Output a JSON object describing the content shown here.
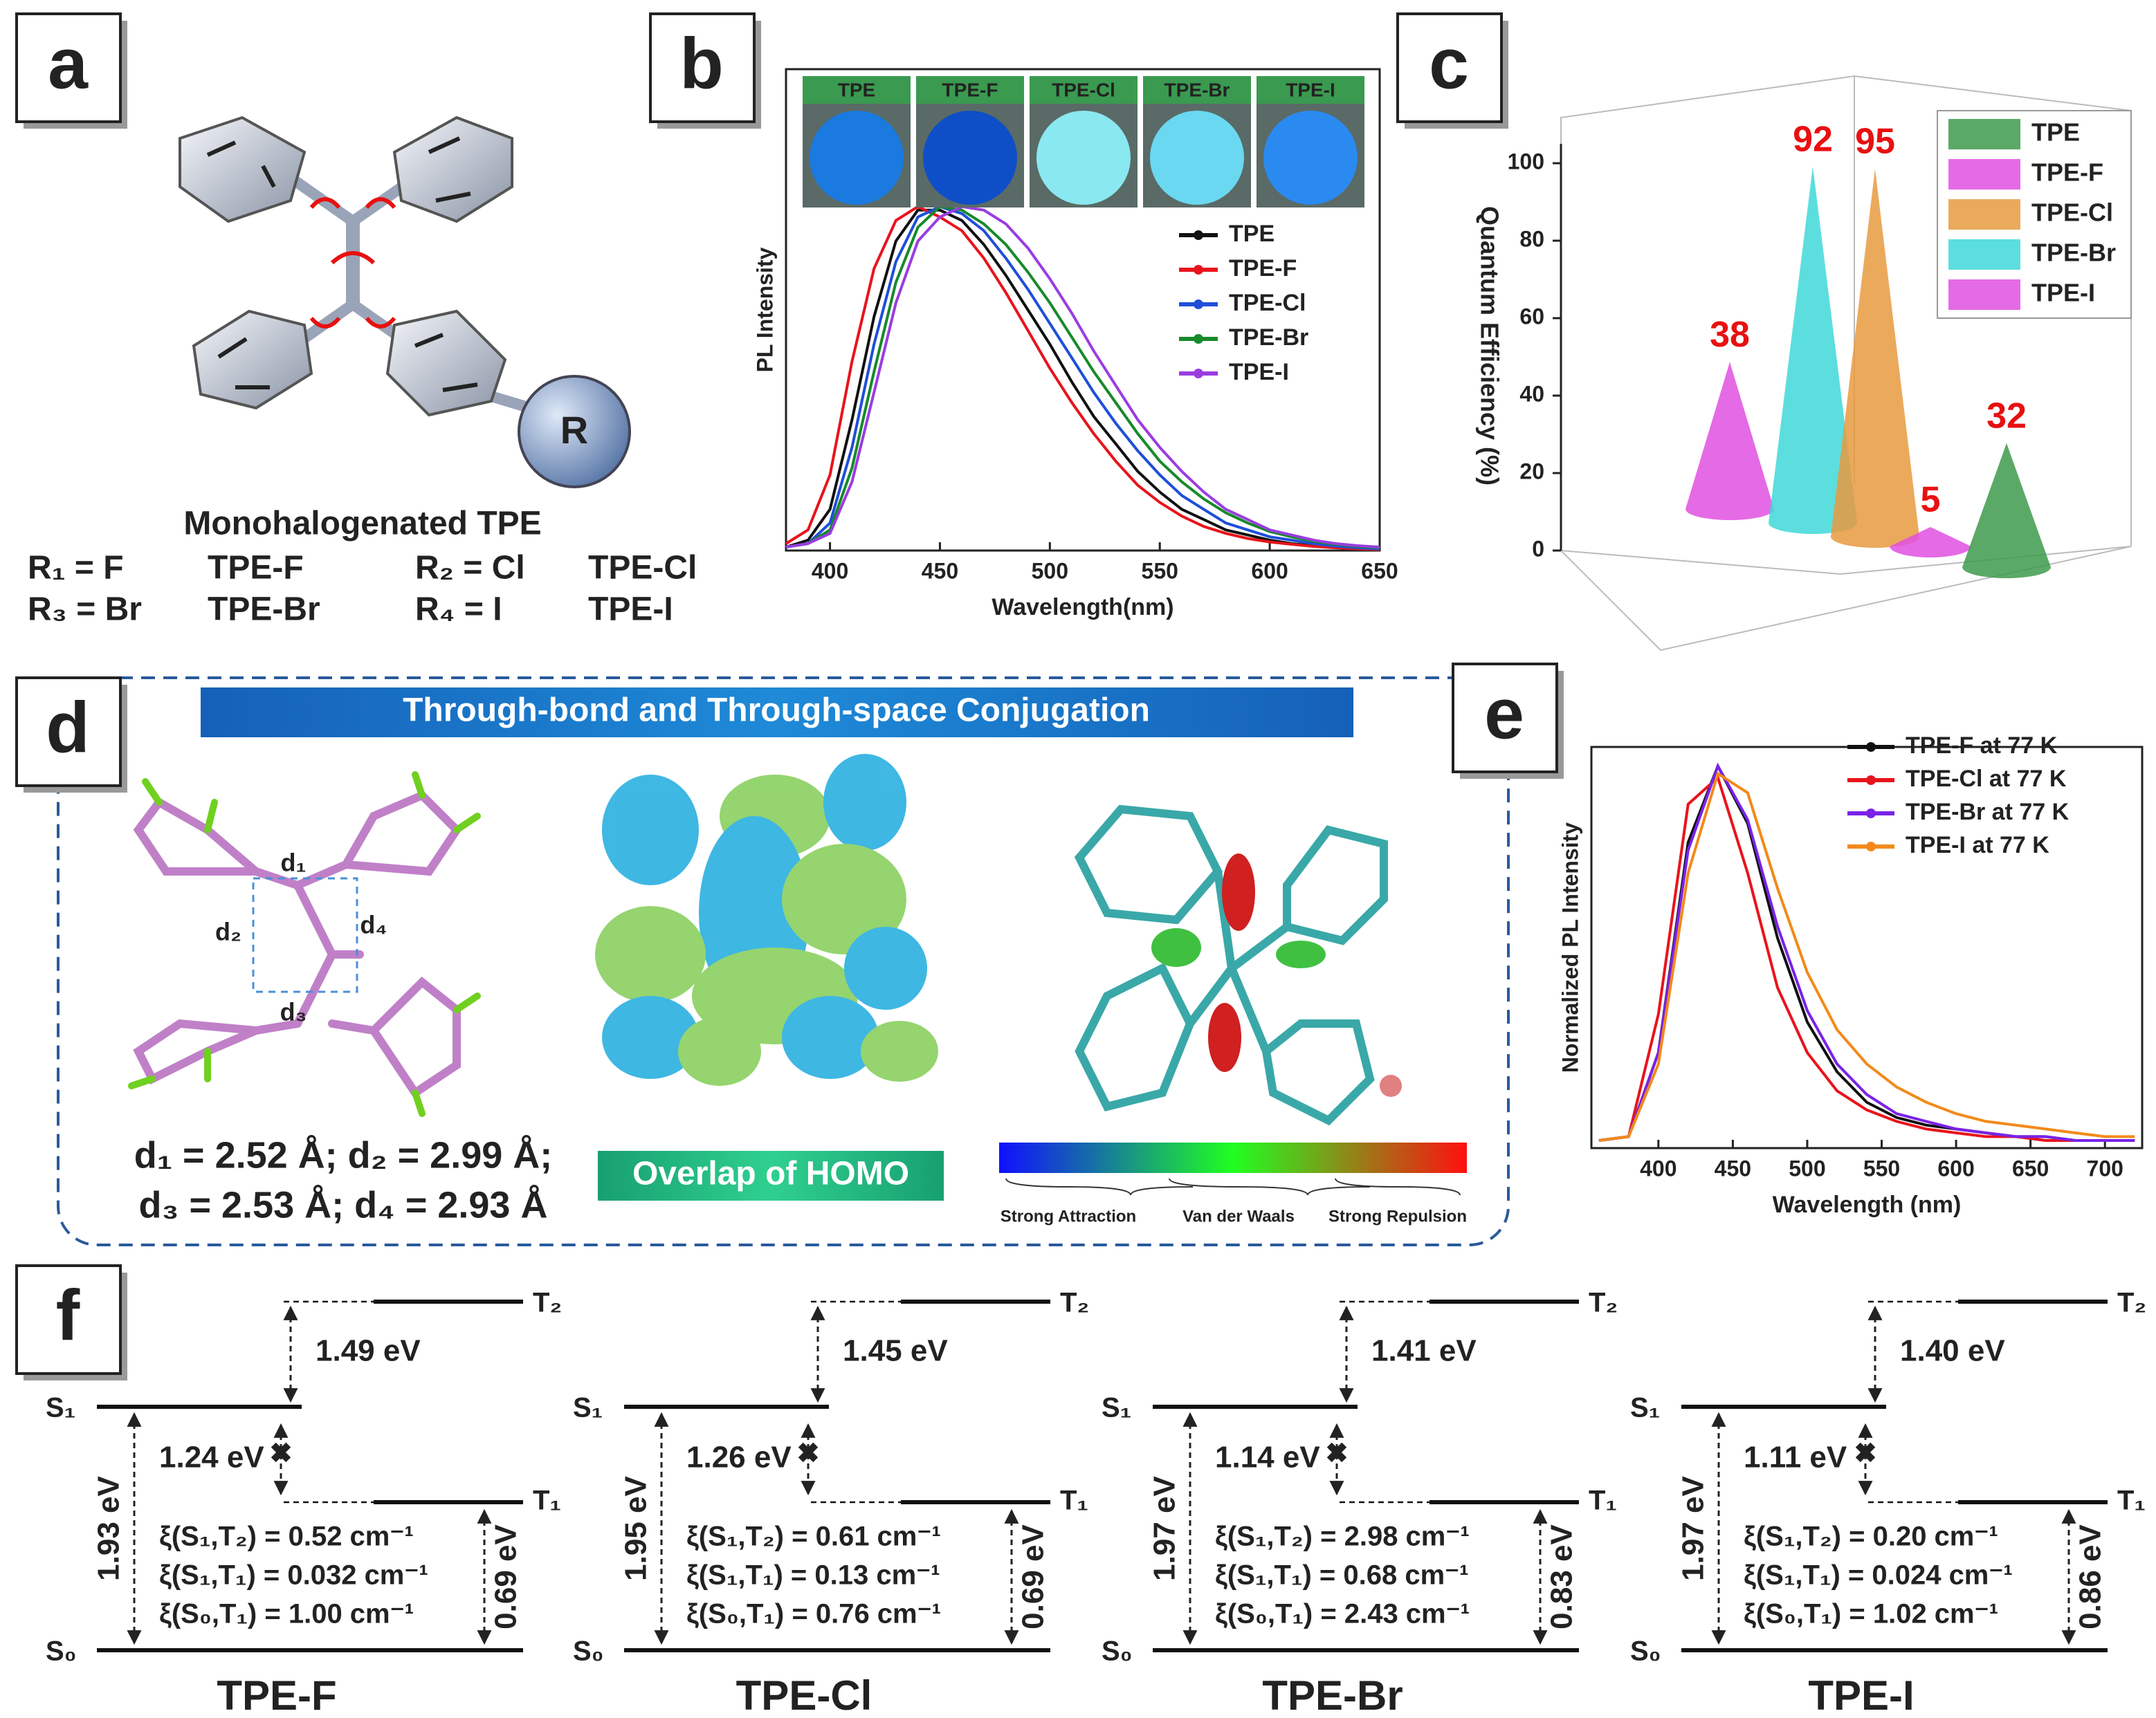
{
  "panel_labels": [
    "a",
    "b",
    "c",
    "d",
    "e",
    "f"
  ],
  "panel_a": {
    "title": "Monohalogenated TPE",
    "substituent": "R",
    "rows": [
      [
        "R₁ = F",
        "TPE-F",
        "R₂ = Cl",
        "TPE-Cl"
      ],
      [
        "R₃ = Br",
        "TPE-Br",
        "R₄ = I",
        "TPE-I"
      ]
    ]
  },
  "chart_data": [
    {
      "type": "line",
      "x_label": "Wavelength(nm)",
      "y_label": "PL Intensity",
      "x": [
        380,
        390,
        400,
        410,
        420,
        430,
        440,
        450,
        460,
        470,
        480,
        490,
        500,
        510,
        520,
        530,
        540,
        550,
        560,
        570,
        580,
        590,
        600,
        610,
        620,
        630,
        640,
        650
      ],
      "series": [
        {
          "name": "TPE",
          "color": "#111111",
          "values": [
            0.01,
            0.03,
            0.12,
            0.38,
            0.68,
            0.9,
            0.99,
            0.99,
            0.96,
            0.89,
            0.8,
            0.7,
            0.6,
            0.49,
            0.39,
            0.31,
            0.23,
            0.17,
            0.12,
            0.09,
            0.06,
            0.045,
            0.03,
            0.02,
            0.014,
            0.01,
            0.006,
            0.004
          ]
        },
        {
          "name": "TPE-F",
          "color": "#e8141c",
          "values": [
            0.02,
            0.06,
            0.22,
            0.55,
            0.82,
            0.96,
            1.0,
            0.97,
            0.93,
            0.85,
            0.75,
            0.64,
            0.53,
            0.43,
            0.34,
            0.26,
            0.19,
            0.14,
            0.1,
            0.07,
            0.05,
            0.035,
            0.025,
            0.018,
            0.012,
            0.008,
            0.005,
            0.003
          ]
        },
        {
          "name": "TPE-Cl",
          "color": "#1f4fd8",
          "values": [
            0.01,
            0.02,
            0.08,
            0.3,
            0.6,
            0.84,
            0.97,
            1.0,
            0.98,
            0.93,
            0.85,
            0.76,
            0.66,
            0.56,
            0.46,
            0.37,
            0.29,
            0.22,
            0.16,
            0.12,
            0.08,
            0.06,
            0.04,
            0.03,
            0.02,
            0.013,
            0.008,
            0.005
          ]
        },
        {
          "name": "TPE-Br",
          "color": "#178a2a",
          "values": [
            0.01,
            0.02,
            0.06,
            0.24,
            0.52,
            0.78,
            0.94,
            1.0,
            0.99,
            0.95,
            0.89,
            0.81,
            0.72,
            0.62,
            0.52,
            0.43,
            0.34,
            0.26,
            0.2,
            0.15,
            0.11,
            0.08,
            0.055,
            0.04,
            0.027,
            0.018,
            0.012,
            0.008
          ]
        },
        {
          "name": "TPE-I",
          "color": "#9a3de0",
          "values": [
            0.01,
            0.02,
            0.05,
            0.2,
            0.46,
            0.72,
            0.9,
            0.97,
            1.0,
            0.99,
            0.95,
            0.88,
            0.79,
            0.69,
            0.58,
            0.48,
            0.38,
            0.3,
            0.23,
            0.17,
            0.12,
            0.09,
            0.06,
            0.045,
            0.03,
            0.02,
            0.014,
            0.01
          ]
        }
      ],
      "xlim": [
        380,
        650
      ],
      "xticks": [
        400,
        450,
        500,
        550,
        600,
        650
      ],
      "ylim": [
        0,
        1.4
      ]
    },
    {
      "type": "cone3d",
      "y_label": "Quantum Efficiency (%)",
      "categories": [
        "TPE",
        "TPE-F",
        "TPE-Cl",
        "TPE-Br",
        "TPE-I"
      ],
      "values": [
        32,
        38,
        95,
        92,
        5
      ],
      "colors": [
        "#3e9a4c",
        "#e050e0",
        "#e89a40",
        "#40d8d8",
        "#e050e0"
      ],
      "label_color": "#e81010",
      "ylim": [
        0,
        105
      ],
      "yticks": [
        0,
        20,
        40,
        60,
        80,
        100
      ]
    },
    {
      "type": "line",
      "x_label": "Wavelength (nm)",
      "y_label": "Normalized PL Intensity",
      "x": [
        360,
        380,
        400,
        420,
        440,
        460,
        480,
        500,
        520,
        540,
        560,
        580,
        600,
        620,
        640,
        660,
        680,
        700,
        720
      ],
      "series": [
        {
          "name": "TPE-F at 77 K",
          "color": "#111111",
          "values": [
            0.02,
            0.03,
            0.25,
            0.8,
            1.0,
            0.85,
            0.55,
            0.33,
            0.2,
            0.12,
            0.08,
            0.06,
            0.05,
            0.04,
            0.03,
            0.03,
            0.02,
            0.02,
            0.02
          ]
        },
        {
          "name": "TPE-Cl at 77 K",
          "color": "#e8141c",
          "values": [
            0.02,
            0.03,
            0.35,
            0.9,
            0.97,
            0.72,
            0.42,
            0.25,
            0.15,
            0.1,
            0.07,
            0.05,
            0.04,
            0.03,
            0.03,
            0.02,
            0.02,
            0.02,
            0.02
          ]
        },
        {
          "name": "TPE-Br at 77 K",
          "color": "#7a22e8",
          "values": [
            0.02,
            0.03,
            0.25,
            0.78,
            1.0,
            0.86,
            0.58,
            0.36,
            0.22,
            0.14,
            0.09,
            0.07,
            0.05,
            0.04,
            0.03,
            0.03,
            0.02,
            0.02,
            0.02
          ]
        },
        {
          "name": "TPE-I at 77 K",
          "color": "#f28a1a",
          "values": [
            0.02,
            0.03,
            0.22,
            0.72,
            0.98,
            0.93,
            0.68,
            0.46,
            0.31,
            0.22,
            0.16,
            0.12,
            0.09,
            0.07,
            0.06,
            0.05,
            0.04,
            0.03,
            0.03
          ]
        }
      ],
      "xlim": [
        355,
        725
      ],
      "xticks": [
        400,
        450,
        500,
        550,
        600,
        650,
        700
      ],
      "ylim": [
        0,
        1.05
      ]
    }
  ],
  "panel_d": {
    "banner": "Through-bond and Through-space Conjugation",
    "distance_labels": [
      "d₁",
      "d₂",
      "d₃",
      "d₄"
    ],
    "distances": [
      "d₁ = 2.52 Å; d₂ = 2.99 Å;",
      "d₃ = 2.53 Å; d₄ = 2.93 Å"
    ],
    "homo_label": "Overlap of HOMO",
    "scale_labels": [
      "Strong Attraction",
      "Van der Waals",
      "Strong Repulsion"
    ]
  },
  "panel_f": {
    "levels": {
      "S1": "S₁",
      "T2": "T₂",
      "T1": "T₁",
      "S0": "S₀"
    },
    "diagrams": [
      {
        "name": "TPE-F",
        "s1_t2": "1.49 eV",
        "s1_t1": "1.24 eV",
        "s0_s1": "1.93 eV",
        "s0_t1": "0.69 eV",
        "soc": [
          "ξ(S₁,T₂) = 0.52 cm⁻¹",
          "ξ(S₁,T₁) = 0.032 cm⁻¹",
          "ξ(S₀,T₁) = 1.00 cm⁻¹"
        ]
      },
      {
        "name": "TPE-Cl",
        "s1_t2": "1.45 eV",
        "s1_t1": "1.26 eV",
        "s0_s1": "1.95 eV",
        "s0_t1": "0.69 eV",
        "soc": [
          "ξ(S₁,T₂) = 0.61 cm⁻¹",
          "ξ(S₁,T₁) = 0.13 cm⁻¹",
          "ξ(S₀,T₁) = 0.76 cm⁻¹"
        ]
      },
      {
        "name": "TPE-Br",
        "s1_t2": "1.41 eV",
        "s1_t1": "1.14 eV",
        "s0_s1": "1.97 eV",
        "s0_t1": "0.83 eV",
        "soc": [
          "ξ(S₁,T₂) = 2.98 cm⁻¹",
          "ξ(S₁,T₁) = 0.68 cm⁻¹",
          "ξ(S₀,T₁) = 2.43 cm⁻¹"
        ]
      },
      {
        "name": "TPE-I",
        "s1_t2": "1.40 eV",
        "s1_t1": "1.11 eV",
        "s0_s1": "1.97 eV",
        "s0_t1": "0.86 eV",
        "soc": [
          "ξ(S₁,T₂) = 0.20 cm⁻¹",
          "ξ(S₁,T₁) = 0.024 cm⁻¹",
          "ξ(S₀,T₁) = 1.02 cm⁻¹"
        ]
      }
    ]
  }
}
